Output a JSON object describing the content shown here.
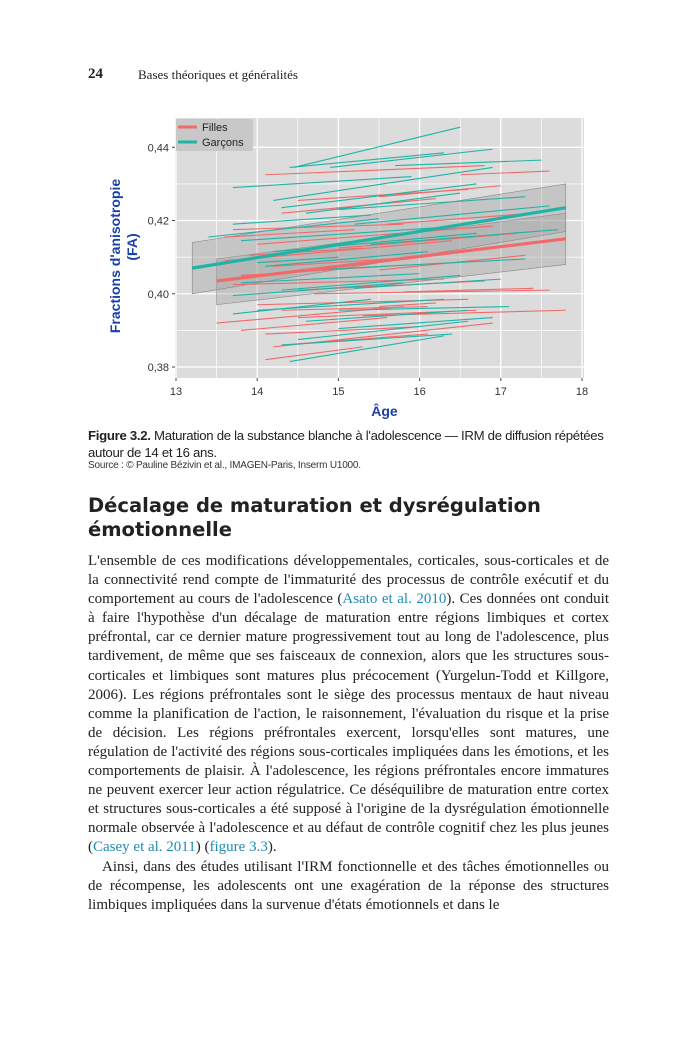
{
  "header": {
    "page_number": "24",
    "running_title": "Bases théoriques et généralités"
  },
  "chart_data": {
    "type": "line",
    "xlabel": "Âge",
    "ylabel": [
      "Fractions d'anisotropie",
      "(FA)"
    ],
    "xlim": [
      13,
      18
    ],
    "ylim": [
      0.377,
      0.448
    ],
    "xticks": [
      "13",
      "14",
      "15",
      "16",
      "17",
      "18"
    ],
    "yticks": [
      {
        "v": 0.38,
        "label": "0,38"
      },
      {
        "v": 0.4,
        "label": "0,40"
      },
      {
        "v": 0.42,
        "label": "0,42"
      },
      {
        "v": 0.44,
        "label": "0,44"
      }
    ],
    "grid": true,
    "legend_position": "top-left",
    "colors": {
      "Filles": "#f06a6a",
      "Garçons": "#20b4a6",
      "panel": "#dcdcdc",
      "band": "#9a9a9a",
      "axis_label": "#1c3fa8"
    },
    "series": [
      {
        "name": "Filles",
        "trend": {
          "x": [
            13.5,
            17.8
          ],
          "y": [
            0.4035,
            0.415
          ],
          "ci_low": [
            0.397,
            0.408
          ],
          "ci_high": [
            0.4095,
            0.422
          ]
        },
        "individual": [
          [
            14.1,
            0.4325,
            16.8,
            0.435
          ],
          [
            16.5,
            0.4325,
            17.6,
            0.4335
          ],
          [
            15.5,
            0.4265,
            17.0,
            0.4295
          ],
          [
            14.5,
            0.4255,
            16.6,
            0.4285
          ],
          [
            14.3,
            0.422,
            16.2,
            0.426
          ],
          [
            13.7,
            0.4175,
            15.8,
            0.419
          ],
          [
            15.6,
            0.419,
            17.4,
            0.422
          ],
          [
            13.6,
            0.4155,
            15.2,
            0.4175
          ],
          [
            14.0,
            0.4135,
            16.9,
            0.4185
          ],
          [
            13.9,
            0.4105,
            15.3,
            0.4125
          ],
          [
            13.6,
            0.409,
            16.4,
            0.4145
          ],
          [
            15.0,
            0.4125,
            17.2,
            0.4165
          ],
          [
            14.2,
            0.4075,
            16.0,
            0.41
          ],
          [
            13.8,
            0.405,
            15.6,
            0.4075
          ],
          [
            15.5,
            0.4065,
            17.3,
            0.4105
          ],
          [
            13.7,
            0.4025,
            16.3,
            0.404
          ],
          [
            14.5,
            0.401,
            16.8,
            0.4035
          ],
          [
            15.8,
            0.4005,
            17.4,
            0.4015
          ],
          [
            14.7,
            0.4,
            17.6,
            0.401
          ],
          [
            14.0,
            0.397,
            16.6,
            0.3985
          ],
          [
            14.3,
            0.3955,
            16.1,
            0.3965
          ],
          [
            13.5,
            0.392,
            15.8,
            0.3965
          ],
          [
            14.5,
            0.3935,
            16.7,
            0.3955
          ],
          [
            15.3,
            0.394,
            17.8,
            0.3955
          ],
          [
            13.8,
            0.39,
            15.6,
            0.3935
          ],
          [
            14.1,
            0.389,
            16.0,
            0.391
          ],
          [
            14.3,
            0.386,
            16.1,
            0.389
          ],
          [
            14.2,
            0.3855,
            16.9,
            0.392
          ],
          [
            14.1,
            0.382,
            15.3,
            0.3855
          ],
          [
            15.5,
            0.3965,
            16.2,
            0.3975
          ]
        ]
      },
      {
        "name": "Garçons",
        "trend": {
          "x": [
            13.2,
            17.8
          ],
          "y": [
            0.407,
            0.4235
          ],
          "ci_low": [
            0.4,
            0.417
          ],
          "ci_high": [
            0.414,
            0.43
          ]
        },
        "individual": [
          [
            14.45,
            0.4345,
            16.5,
            0.4455
          ],
          [
            14.4,
            0.4345,
            16.3,
            0.4385
          ],
          [
            14.9,
            0.4345,
            16.9,
            0.4395
          ],
          [
            15.7,
            0.435,
            17.5,
            0.4365
          ],
          [
            13.7,
            0.429,
            15.9,
            0.432
          ],
          [
            14.2,
            0.4255,
            16.9,
            0.4345
          ],
          [
            14.3,
            0.4235,
            16.7,
            0.43
          ],
          [
            15.0,
            0.423,
            17.3,
            0.4265
          ],
          [
            14.6,
            0.422,
            16.5,
            0.4275
          ],
          [
            13.7,
            0.419,
            15.4,
            0.4215
          ],
          [
            13.4,
            0.4155,
            15.5,
            0.4205
          ],
          [
            15.2,
            0.419,
            17.6,
            0.424
          ],
          [
            13.8,
            0.4145,
            16.2,
            0.418
          ],
          [
            14.2,
            0.4115,
            16.7,
            0.4165
          ],
          [
            15.4,
            0.4135,
            17.7,
            0.4175
          ],
          [
            14.1,
            0.4075,
            16.1,
            0.4115
          ],
          [
            14.7,
            0.4065,
            17.3,
            0.4095
          ],
          [
            13.8,
            0.403,
            16.0,
            0.4055
          ],
          [
            14.3,
            0.401,
            16.5,
            0.405
          ],
          [
            15.2,
            0.4015,
            17.0,
            0.404
          ],
          [
            13.7,
            0.3995,
            15.8,
            0.403
          ],
          [
            13.7,
            0.3945,
            15.4,
            0.3985
          ],
          [
            14.0,
            0.3955,
            16.3,
            0.3985
          ],
          [
            15.0,
            0.3955,
            17.1,
            0.3965
          ],
          [
            14.6,
            0.3925,
            16.6,
            0.3955
          ],
          [
            14.5,
            0.3875,
            16.6,
            0.3925
          ],
          [
            14.3,
            0.386,
            16.4,
            0.389
          ],
          [
            14.4,
            0.3815,
            16.3,
            0.3885
          ],
          [
            15.0,
            0.3905,
            16.9,
            0.3935
          ],
          [
            14.0,
            0.4085,
            15.0,
            0.41
          ]
        ]
      }
    ]
  },
  "figure": {
    "label": "Figure 3.2.",
    "caption": " Maturation de la substance blanche à l'adolescence — IRM de diffusion répétées autour de 14 et 16 ans.",
    "source": "Source : © Pauline Bézivin et al., IMAGEN-Paris, Inserm U1000."
  },
  "section": {
    "heading": "Décalage de maturation et dysrégulation émotionnelle"
  },
  "paragraphs": [
    [
      {
        "t": "L'ensemble de ces modifications développementales, corticales, sous-corticales et de la connectivité rend compte de l'immaturité des processus de contrôle exécutif et du comportement au cours de l'adolescence ("
      },
      {
        "t": "Asato et al. 2010",
        "link": true
      },
      {
        "t": "). Ces données ont conduit à faire l'hypothèse d'un décalage de maturation entre régions limbiques et cortex préfrontal, car ce dernier mature progressivement tout au long de l'adolescence, plus tardivement, de même que ses faisceaux de connexion, alors que les structures sous-corticales et limbiques sont matures plus précocement (Yurgelun-Todd et Killgore, 2006). Les régions préfrontales sont le siège des processus mentaux de haut niveau comme la planification de l'action, le raisonnement, l'évaluation du risque et la prise de décision. Les régions préfrontales exercent, lorsqu'elles sont matures, une régulation de l'activité des régions sous-corticales impliquées dans les émotions, et les comportements de plaisir. À l'adolescence, les régions préfrontales encore immatures ne peuvent exercer leur action régulatrice. Ce déséquilibre de maturation entre cortex et structures sous-corticales a été supposé à l'origine de la dysrégulation émotionnelle normale observée à l'adolescence et au défaut de contrôle cognitif chez les plus jeunes ("
      },
      {
        "t": "Casey et al. 2011",
        "link": true
      },
      {
        "t": ") ("
      },
      {
        "t": "figure 3.3",
        "link": true
      },
      {
        "t": ")."
      }
    ],
    [
      {
        "t": "Ainsi, dans des études utilisant l'IRM fonctionnelle et des tâches émotionnelles ou de récompense, les adolescents ont une exagération de la réponse des structures limbiques impliquées dans la survenue d'états émotionnels et dans le"
      }
    ]
  ]
}
